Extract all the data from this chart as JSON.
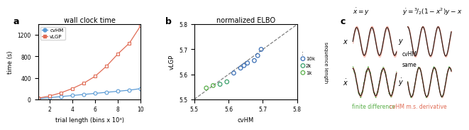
{
  "panel_a": {
    "title": "wall clock time",
    "xlabel": "trial length (bins x 10³)",
    "ylabel": "time (s)",
    "xlim": [
      1,
      10
    ],
    "ylim": [
      0,
      1400
    ],
    "yticks": [
      0,
      400,
      800,
      1200
    ],
    "xticks": [
      2,
      4,
      6,
      8,
      10
    ],
    "cvhm_x": [
      1,
      2,
      3,
      4,
      5,
      6,
      7,
      8,
      9,
      10
    ],
    "cvhm_y": [
      10,
      30,
      50,
      70,
      90,
      110,
      130,
      150,
      170,
      200
    ],
    "vlgp_x": [
      1,
      2,
      3,
      4,
      5,
      6,
      7,
      8,
      9,
      10
    ],
    "vlgp_y": [
      20,
      60,
      120,
      200,
      300,
      430,
      620,
      850,
      1050,
      1380
    ],
    "cvhm_color": "#5b9bd5",
    "vlgp_color": "#e06c55",
    "label_cvhm": "cvHM",
    "label_vlgp": "vLGP"
  },
  "panel_b": {
    "title": "normalized ELBO",
    "xlabel": "cvHM",
    "ylabel": "vLGP",
    "xlim": [
      5.5,
      5.8
    ],
    "ylim": [
      5.5,
      5.8
    ],
    "xticks": [
      5.5,
      5.6,
      5.7,
      5.8
    ],
    "yticks": [
      5.5,
      5.6,
      5.7,
      5.8
    ],
    "diag": [
      5.5,
      5.8
    ],
    "scatter_data": [
      {
        "cvhm": 5.535,
        "vlgp": 5.545,
        "seq": "1k",
        "color": "#5aaf4a"
      },
      {
        "cvhm": 5.555,
        "vlgp": 5.555,
        "seq": "1k",
        "color": "#5aaf4a"
      },
      {
        "cvhm": 5.575,
        "vlgp": 5.56,
        "seq": "2k",
        "color": "#3a9f6a"
      },
      {
        "cvhm": 5.595,
        "vlgp": 5.57,
        "seq": "2k",
        "color": "#3a9f6a"
      },
      {
        "cvhm": 5.615,
        "vlgp": 5.605,
        "seq": "10k",
        "color": "#3b6fb5"
      },
      {
        "cvhm": 5.635,
        "vlgp": 5.625,
        "seq": "10k",
        "color": "#3b6fb5"
      },
      {
        "cvhm": 5.645,
        "vlgp": 5.635,
        "seq": "10k",
        "color": "#3b6fb5"
      },
      {
        "cvhm": 5.655,
        "vlgp": 5.645,
        "seq": "10k",
        "color": "#3b6fb5"
      },
      {
        "cvhm": 5.675,
        "vlgp": 5.655,
        "seq": "10k",
        "color": "#3b6fb5"
      },
      {
        "cvhm": 5.685,
        "vlgp": 5.675,
        "seq": "10k",
        "color": "#3b6fb5"
      },
      {
        "cvhm": 5.695,
        "vlgp": 5.7,
        "seq": "10k",
        "color": "#3b6fb5"
      }
    ],
    "legend_entries": [
      {
        "label": "10k",
        "color": "#3b6fb5"
      },
      {
        "label": "2k",
        "color": "#3a9f6a"
      },
      {
        "label": "1k",
        "color": "#5aaf4a"
      }
    ]
  },
  "panel_c": {
    "eq_top_left": "$\\dot{x} = y$",
    "eq_top_right": "$\\dot{y} = {}^3\\!/_2(1-x^2)y - x$",
    "x_label": "$x$",
    "y_label": "$y$",
    "xdot_label": "$\\dot{x}$",
    "ydot_label": "$\\dot{y}$",
    "color_truth": "#1a1a1a",
    "color_cvhm": "#e06c55",
    "color_fd": "#5aaf4a"
  },
  "bg_color": "#ffffff",
  "figure_label_a": "a",
  "figure_label_b": "b",
  "figure_label_c": "c"
}
